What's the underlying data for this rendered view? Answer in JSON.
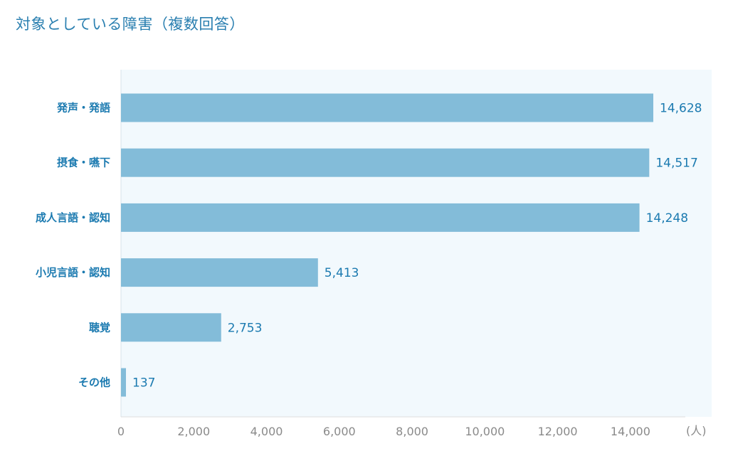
{
  "title": "対象としている障害（複数回答）",
  "colors": {
    "bar": "#83bcd9",
    "plot_background": "#f2f9fd",
    "category_text": "#1b7ab0",
    "value_text": "#1b7ab0",
    "tick_text": "#8a8a8a",
    "title_text": "#2a7fb0"
  },
  "chart_data": {
    "type": "bar",
    "orientation": "horizontal",
    "categories": [
      "発声・発語",
      "摂食・嚥下",
      "成人言語・認知",
      "小児言語・認知",
      "聴覚",
      "その他"
    ],
    "values": [
      14628,
      14517,
      14248,
      5413,
      2753,
      137
    ],
    "value_labels": [
      "14,628",
      "14,517",
      "14,248",
      "5,413",
      "2,753",
      "137"
    ],
    "title": "対象としている障害（複数回答）",
    "xlabel": "",
    "ylabel": "",
    "unit": "(人)",
    "xlim": [
      0,
      14628
    ],
    "x_ticks": [
      0,
      2000,
      4000,
      6000,
      8000,
      10000,
      12000,
      14000
    ],
    "x_tick_labels": [
      "0",
      "2,000",
      "4,000",
      "6,000",
      "8,000",
      "10,000",
      "12,000",
      "14,000"
    ],
    "grid": false,
    "legend": "none"
  }
}
